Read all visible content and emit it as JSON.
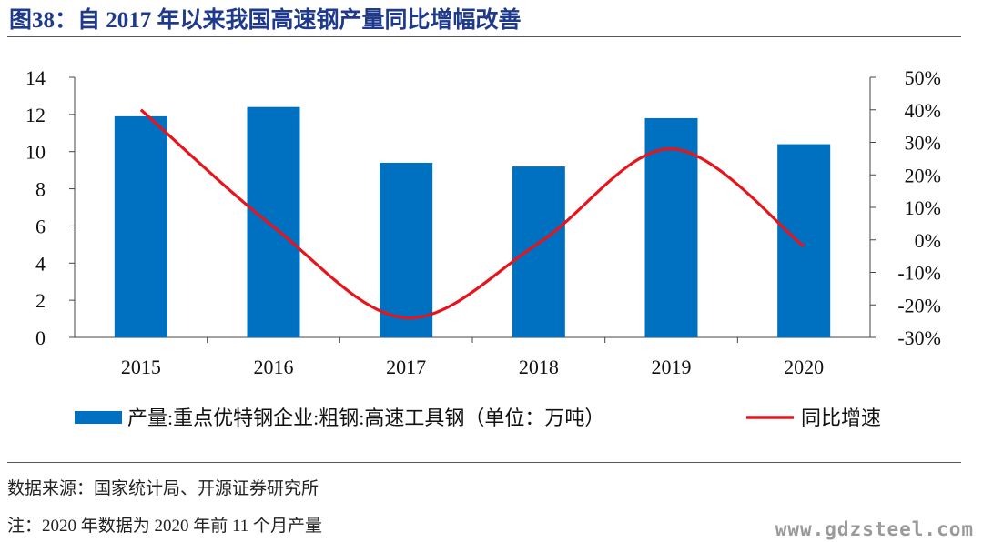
{
  "title": "图38：自 2017 年以来我国高速钢产量同比增幅改善",
  "source": "数据来源：国家统计局、开源证券研究所",
  "footnote": "注：2020 年数据为 2020 年前 11 个月产量",
  "watermark": "www.gdzsteel.com",
  "chart_data": {
    "type": "bar",
    "categories": [
      "2015",
      "2016",
      "2017",
      "2018",
      "2019",
      "2020"
    ],
    "series": [
      {
        "name": "产量:重点优特钢企业:粗钢:高速工具钢（单位：万吨）",
        "type": "bar",
        "axis": "left",
        "values": [
          11.9,
          12.4,
          9.4,
          9.2,
          11.8,
          10.4
        ],
        "color": "#0070c0"
      },
      {
        "name": "同比增速",
        "type": "line",
        "axis": "right",
        "values": [
          40.0,
          4.0,
          -24.0,
          -1.0,
          28.0,
          -2.0
        ],
        "color": "#e8141b"
      }
    ],
    "y_left": {
      "min": 0,
      "max": 14,
      "ticks": [
        "0",
        "2",
        "4",
        "6",
        "8",
        "10",
        "12",
        "14"
      ]
    },
    "y_right": {
      "min": -30,
      "max": 50,
      "ticks": [
        "-30%",
        "-20%",
        "-10%",
        "0%",
        "10%",
        "20%",
        "30%",
        "40%",
        "50%"
      ]
    },
    "grid": false,
    "legend_position": "bottom"
  }
}
